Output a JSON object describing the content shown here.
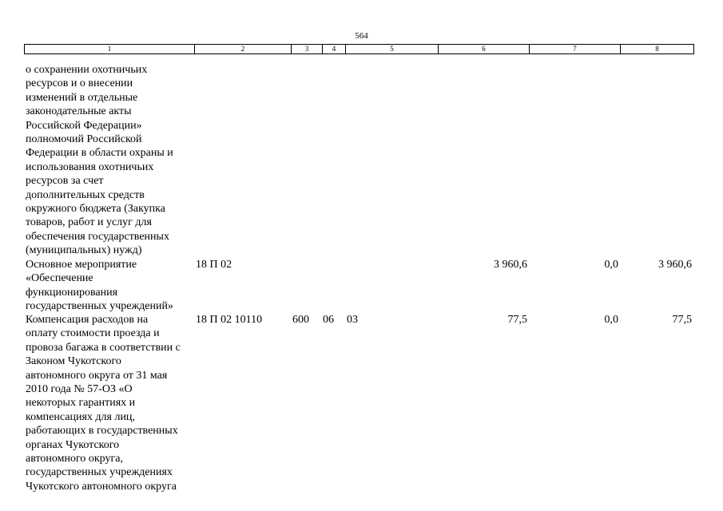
{
  "page_number": "564",
  "table": {
    "header": [
      "1",
      "2",
      "3",
      "4",
      "5",
      "6",
      "7",
      "8"
    ],
    "rows": [
      {
        "name": [
          "о сохранении охотничьих",
          "ресурсов и о внесении",
          "изменений в отдельные",
          "законодательные акты",
          "Российской Федерации»",
          "полномочий Российской",
          "Федерации в области охраны и",
          "использования охотничьих",
          "ресурсов за счет",
          "дополнительных средств",
          "окружного бюджета (Закупка",
          "товаров, работ и услуг для",
          "обеспечения государственных",
          "(муниципальных) нужд)"
        ]
      },
      {
        "name": [
          "Основное мероприятие",
          "«Обеспечение",
          "функционирования",
          "государственных учреждений»"
        ],
        "code": "18 П 02",
        "sum6": "3 960,6",
        "sum7": "0,0",
        "sum8": "3 960,6"
      },
      {
        "name": [
          "Компенсация расходов на",
          "оплату стоимости проезда и",
          "провоза багажа в соответствии с",
          "Законом Чукотского",
          "автономного округа от 31 мая",
          "2010 года № 57-ОЗ «О",
          "некоторых гарантиях и",
          "компенсациях для лиц,",
          "работающих в государственных",
          "органах Чукотского",
          "автономного округа,",
          "государственных учреждениях",
          "Чукотского автономного округа"
        ],
        "code": "18 П 02 10110",
        "vr": "600",
        "rz": "06",
        "pr": "03",
        "sum6": "77,5",
        "sum7": "0,0",
        "sum8": "77,5"
      }
    ]
  }
}
